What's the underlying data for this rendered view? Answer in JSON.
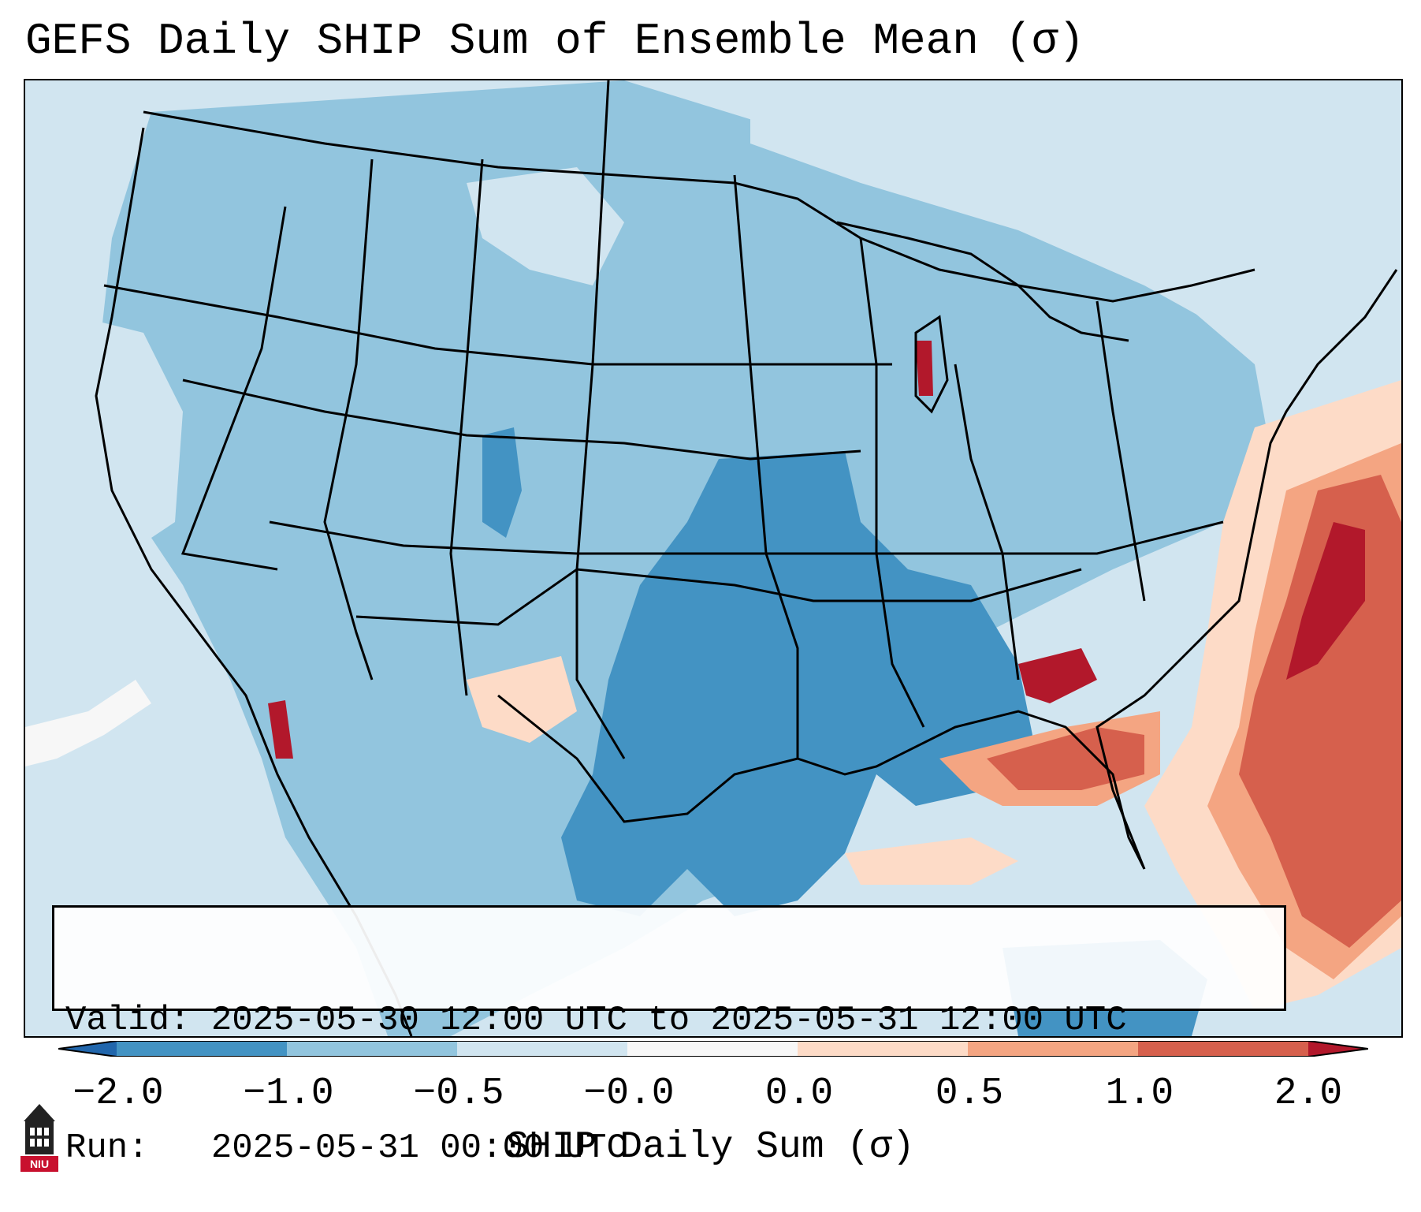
{
  "title": "GEFS Daily SHIP Sum of Ensemble Mean (σ)",
  "info": {
    "valid_line": "Valid: 2025-05-30 12:00 UTC to 2025-05-31 12:00 UTC",
    "run_line": "Run:   2025-05-31 00:00 UTC"
  },
  "colorbar": {
    "label": "SHIP Daily Sum (σ)",
    "ticks": [
      "−2.0",
      "−1.0",
      "−0.5",
      "−0.0",
      "0.0",
      "0.5",
      "1.0",
      "2.0"
    ],
    "bin_colors": [
      "#4393c3",
      "#92c5de",
      "#d1e5f0",
      "#fddbc7",
      "#f4a582",
      "#d6604d",
      "#b2182b"
    ],
    "extend_low_color": "#2166ac",
    "extend_high_color": "#b2182b"
  },
  "map": {
    "background_color": "#d1e5f0",
    "region": "Contiguous United States, southern Canada, northern Mexico, Gulf of Mexico, western Atlantic",
    "boundary_color": "#000000"
  },
  "logo": {
    "text": "NIU",
    "icon": "university-tower-icon",
    "color": "#c8102e"
  }
}
